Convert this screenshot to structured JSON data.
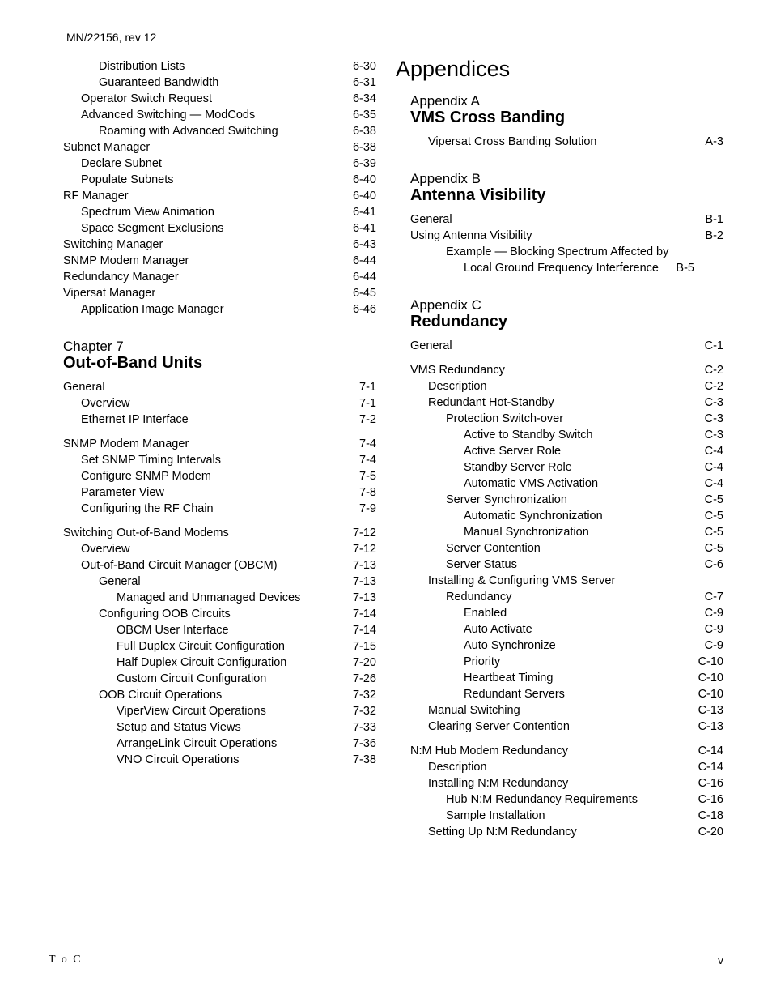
{
  "doc_header": "MN/22156, rev 12",
  "footer_left": "T o C",
  "footer_right": "v",
  "left_column": {
    "block1": [
      {
        "indent": 2,
        "label": "Distribution Lists",
        "page": "6-30"
      },
      {
        "indent": 2,
        "label": "Guaranteed Bandwidth",
        "page": "6-31"
      },
      {
        "indent": 1,
        "label": "Operator Switch Request",
        "page": "6-34"
      },
      {
        "indent": 1,
        "label": "Advanced Switching — ModCods",
        "page": "6-35"
      },
      {
        "indent": 2,
        "label": "Roaming with Advanced Switching",
        "page": "6-38"
      },
      {
        "indent": 0,
        "label": "Subnet Manager",
        "page": "6-38"
      },
      {
        "indent": 1,
        "label": "Declare Subnet",
        "page": "6-39"
      },
      {
        "indent": 1,
        "label": "Populate Subnets",
        "page": "6-40"
      },
      {
        "indent": 0,
        "label": "RF Manager",
        "page": "6-40"
      },
      {
        "indent": 1,
        "label": "Spectrum View Animation",
        "page": "6-41"
      },
      {
        "indent": 1,
        "label": "Space Segment Exclusions",
        "page": "6-41"
      },
      {
        "indent": 0,
        "label": "Switching Manager",
        "page": "6-43"
      },
      {
        "indent": 0,
        "label": "SNMP Modem Manager",
        "page": "6-44"
      },
      {
        "indent": 0,
        "label": "Redundancy Manager",
        "page": "6-44"
      },
      {
        "indent": 0,
        "label": "Vipersat Manager",
        "page": "6-45"
      },
      {
        "indent": 1,
        "label": "Application Image Manager",
        "page": "6-46"
      }
    ],
    "chapter7_label": "Chapter 7",
    "chapter7_title": "Out-of-Band Units",
    "block2": [
      {
        "indent": 0,
        "label": "General",
        "page": "7-1"
      },
      {
        "indent": 1,
        "label": "Overview",
        "page": "7-1"
      },
      {
        "indent": 1,
        "label": "Ethernet IP Interface",
        "page": "7-2"
      }
    ],
    "block3": [
      {
        "indent": 0,
        "label": "SNMP Modem Manager",
        "page": "7-4"
      },
      {
        "indent": 1,
        "label": "Set SNMP Timing Intervals",
        "page": "7-4"
      },
      {
        "indent": 1,
        "label": "Configure SNMP Modem",
        "page": "7-5"
      },
      {
        "indent": 1,
        "label": "Parameter View",
        "page": "7-8"
      },
      {
        "indent": 1,
        "label": "Configuring the RF Chain",
        "page": "7-9"
      }
    ],
    "block4": [
      {
        "indent": 0,
        "label": "Switching Out-of-Band Modems",
        "page": "7-12"
      },
      {
        "indent": 1,
        "label": "Overview",
        "page": "7-12"
      },
      {
        "indent": 1,
        "label": "Out-of-Band Circuit Manager (OBCM)",
        "page": "7-13"
      },
      {
        "indent": 2,
        "label": "General",
        "page": "7-13"
      },
      {
        "indent": 3,
        "label": "Managed and Unmanaged Devices",
        "page": "7-13"
      },
      {
        "indent": 2,
        "label": "Configuring OOB Circuits",
        "page": "7-14"
      },
      {
        "indent": 3,
        "label": "OBCM User Interface",
        "page": "7-14"
      },
      {
        "indent": 3,
        "label": "Full Duplex Circuit Configuration",
        "page": "7-15"
      },
      {
        "indent": 3,
        "label": "Half Duplex Circuit Configuration",
        "page": "7-20"
      },
      {
        "indent": 3,
        "label": "Custom Circuit Configuration",
        "page": "7-26"
      },
      {
        "indent": 2,
        "label": "OOB Circuit Operations",
        "page": "7-32"
      },
      {
        "indent": 3,
        "label": "ViperView Circuit Operations",
        "page": "7-32"
      },
      {
        "indent": 3,
        "label": "Setup and Status Views",
        "page": "7-33"
      },
      {
        "indent": 3,
        "label": "ArrangeLink Circuit Operations",
        "page": "7-36"
      },
      {
        "indent": 3,
        "label": "VNO Circuit Operations",
        "page": "7-38"
      }
    ]
  },
  "right_column": {
    "part_title": "Appendices",
    "appA_label": "Appendix A",
    "appA_title": "VMS Cross Banding",
    "blockA": [
      {
        "indent": 1,
        "label": "Vipersat Cross Banding Solution",
        "page": "A-3"
      }
    ],
    "appB_label": "Appendix B",
    "appB_title": "Antenna Visibility",
    "blockB": [
      {
        "indent": 0,
        "label": "General",
        "page": "B-1"
      },
      {
        "indent": 0,
        "label": "Using Antenna Visibility",
        "page": "B-2"
      },
      {
        "indent": 2,
        "label": "Example — Blocking Spectrum Affected by",
        "page": ""
      },
      {
        "indent": 3,
        "label": "Local Ground Frequency Interference",
        "page": "B-5",
        "nodots": true
      }
    ],
    "appC_label": "Appendix C",
    "appC_title": "Redundancy",
    "blockC1": [
      {
        "indent": 0,
        "label": "General",
        "page": "C-1"
      }
    ],
    "blockC2": [
      {
        "indent": 0,
        "label": "VMS Redundancy",
        "page": "C-2"
      },
      {
        "indent": 1,
        "label": "Description",
        "page": "C-2"
      },
      {
        "indent": 1,
        "label": "Redundant Hot-Standby",
        "page": "C-3"
      },
      {
        "indent": 2,
        "label": "Protection Switch-over",
        "page": "C-3"
      },
      {
        "indent": 3,
        "label": "Active to Standby Switch",
        "page": "C-3"
      },
      {
        "indent": 3,
        "label": "Active Server Role",
        "page": "C-4"
      },
      {
        "indent": 3,
        "label": "Standby Server Role",
        "page": "C-4"
      },
      {
        "indent": 3,
        "label": "Automatic VMS Activation",
        "page": "C-4"
      },
      {
        "indent": 2,
        "label": "Server Synchronization",
        "page": "C-5"
      },
      {
        "indent": 3,
        "label": "Automatic Synchronization",
        "page": "C-5"
      },
      {
        "indent": 3,
        "label": "Manual Synchronization",
        "page": "C-5"
      },
      {
        "indent": 2,
        "label": "Server Contention",
        "page": "C-5"
      },
      {
        "indent": 2,
        "label": "Server Status",
        "page": "C-6"
      },
      {
        "indent": 1,
        "label": "Installing & Configuring VMS Server",
        "page": ""
      },
      {
        "indent": 2,
        "label": "Redundancy",
        "page": "C-7"
      },
      {
        "indent": 3,
        "label": "Enabled",
        "page": "C-9"
      },
      {
        "indent": 3,
        "label": "Auto Activate",
        "page": "C-9"
      },
      {
        "indent": 3,
        "label": "Auto Synchronize",
        "page": "C-9"
      },
      {
        "indent": 3,
        "label": "Priority",
        "page": "C-10"
      },
      {
        "indent": 3,
        "label": "Heartbeat Timing",
        "page": "C-10"
      },
      {
        "indent": 3,
        "label": "Redundant Servers",
        "page": "C-10"
      },
      {
        "indent": 1,
        "label": "Manual Switching",
        "page": "C-13"
      },
      {
        "indent": 1,
        "label": "Clearing Server Contention",
        "page": "C-13"
      }
    ],
    "blockC3": [
      {
        "indent": 0,
        "label": "N:M Hub Modem Redundancy",
        "page": "C-14"
      },
      {
        "indent": 1,
        "label": "Description",
        "page": "C-14"
      },
      {
        "indent": 1,
        "label": "Installing N:M Redundancy",
        "page": "C-16"
      },
      {
        "indent": 2,
        "label": "Hub N:M Redundancy Requirements",
        "page": "C-16"
      },
      {
        "indent": 2,
        "label": "Sample Installation",
        "page": "C-18"
      },
      {
        "indent": 1,
        "label": "Setting Up N:M Redundancy",
        "page": "C-20"
      }
    ]
  }
}
